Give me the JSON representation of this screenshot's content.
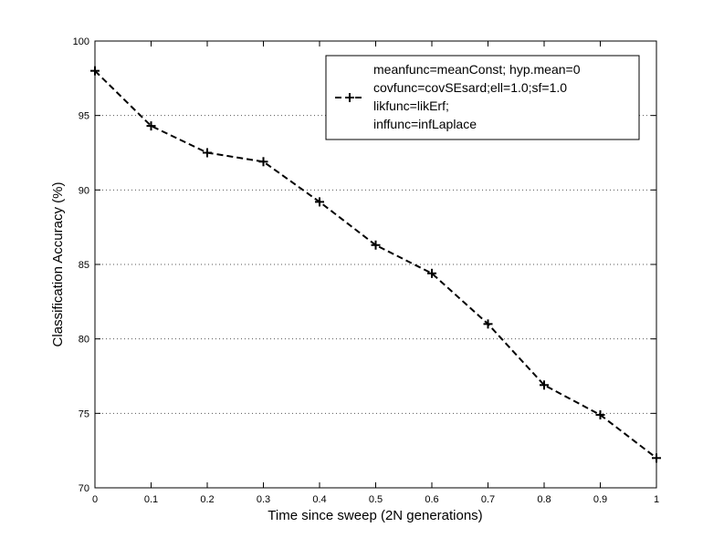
{
  "chart_data": {
    "type": "line",
    "title": "",
    "xlabel": "Time since sweep (2N generations)",
    "ylabel": "Classification Accuracy (%)",
    "xlim": [
      0,
      1
    ],
    "ylim": [
      70,
      100
    ],
    "xticks": [
      "0",
      "0.1",
      "0.2",
      "0.3",
      "0.4",
      "0.5",
      "0.6",
      "0.7",
      "0.8",
      "0.9",
      "1"
    ],
    "yticks": [
      "70",
      "75",
      "80",
      "85",
      "90",
      "95",
      "100"
    ],
    "grid": "horizontal dotted",
    "legend_position": "top-right",
    "series": [
      {
        "name": "meanfunc=meanConst; hyp.mean=0 covfunc=covSEsard;ell=1.0;sf=1.0 likfunc=likErf; inffunc=infLaplace",
        "legend_lines": [
          "meanfunc=meanConst; hyp.mean=0",
          "covfunc=covSEsard;ell=1.0;sf=1.0",
          "likfunc=likErf;",
          "inffunc=infLaplace"
        ],
        "style": "dashed",
        "marker": "+",
        "color": "#000000",
        "x": [
          0,
          0.1,
          0.2,
          0.3,
          0.4,
          0.5,
          0.6,
          0.7,
          0.8,
          0.9,
          1.0
        ],
        "y": [
          98.0,
          94.3,
          92.5,
          91.9,
          89.2,
          86.3,
          84.4,
          81.0,
          76.9,
          74.9,
          72.0
        ]
      }
    ]
  }
}
